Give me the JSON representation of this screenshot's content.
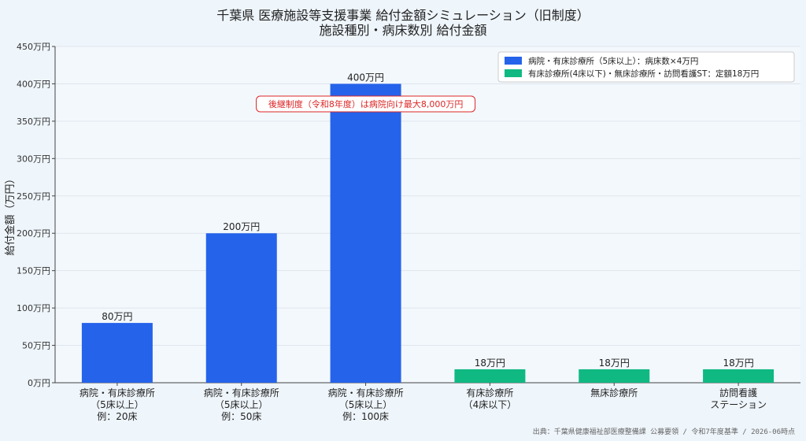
{
  "chart_data": {
    "type": "bar",
    "title": "千葉県 医療施設等支援事業 給付金額シミュレーション（旧制度）",
    "subtitle": "施設種別・病床数別 給付金額",
    "ylabel": "給付金額（万円）",
    "xlabel": "",
    "ylim": [
      0,
      450
    ],
    "yticks": [
      "0万円",
      "50万円",
      "100万円",
      "150万円",
      "200万円",
      "250万円",
      "300万円",
      "350万円",
      "400万円",
      "450万円"
    ],
    "ytick_values": [
      0,
      50,
      100,
      150,
      200,
      250,
      300,
      350,
      400,
      450
    ],
    "grid": true,
    "legend_position": "top-right",
    "categories": [
      [
        "病院・有床診療所",
        "（5床以上）",
        "例：20床"
      ],
      [
        "病院・有床診療所",
        "（5床以上）",
        "例：50床"
      ],
      [
        "病院・有床診療所",
        "（5床以上）",
        "例：100床"
      ],
      [
        "有床診療所",
        "（4床以下）"
      ],
      [
        "無床診療所"
      ],
      [
        "訪問看護",
        "ステーション"
      ]
    ],
    "values": [
      80,
      200,
      400,
      18,
      18,
      18
    ],
    "data_labels": [
      "80万円",
      "200万円",
      "400万円",
      "18万円",
      "18万円",
      "18万円"
    ],
    "bar_series": [
      0,
      0,
      0,
      1,
      1,
      1
    ],
    "series": [
      {
        "name": "病院・有床診療所（5床以上）：病床数×4万円",
        "color": "#2563eb"
      },
      {
        "name": "有床診療所(4床以下)・無床診療所・訪問看護ST：定額18万円",
        "color": "#10b981"
      }
    ],
    "annotation": {
      "text": "後継制度（令和8年度）は病院向け最大8,000万円",
      "color": "#dc2626",
      "bar_index": 2
    },
    "source": "出典：千葉県健康福祉部医療整備課 公募要領 / 令和7年度基準 / 2026-06時点"
  }
}
